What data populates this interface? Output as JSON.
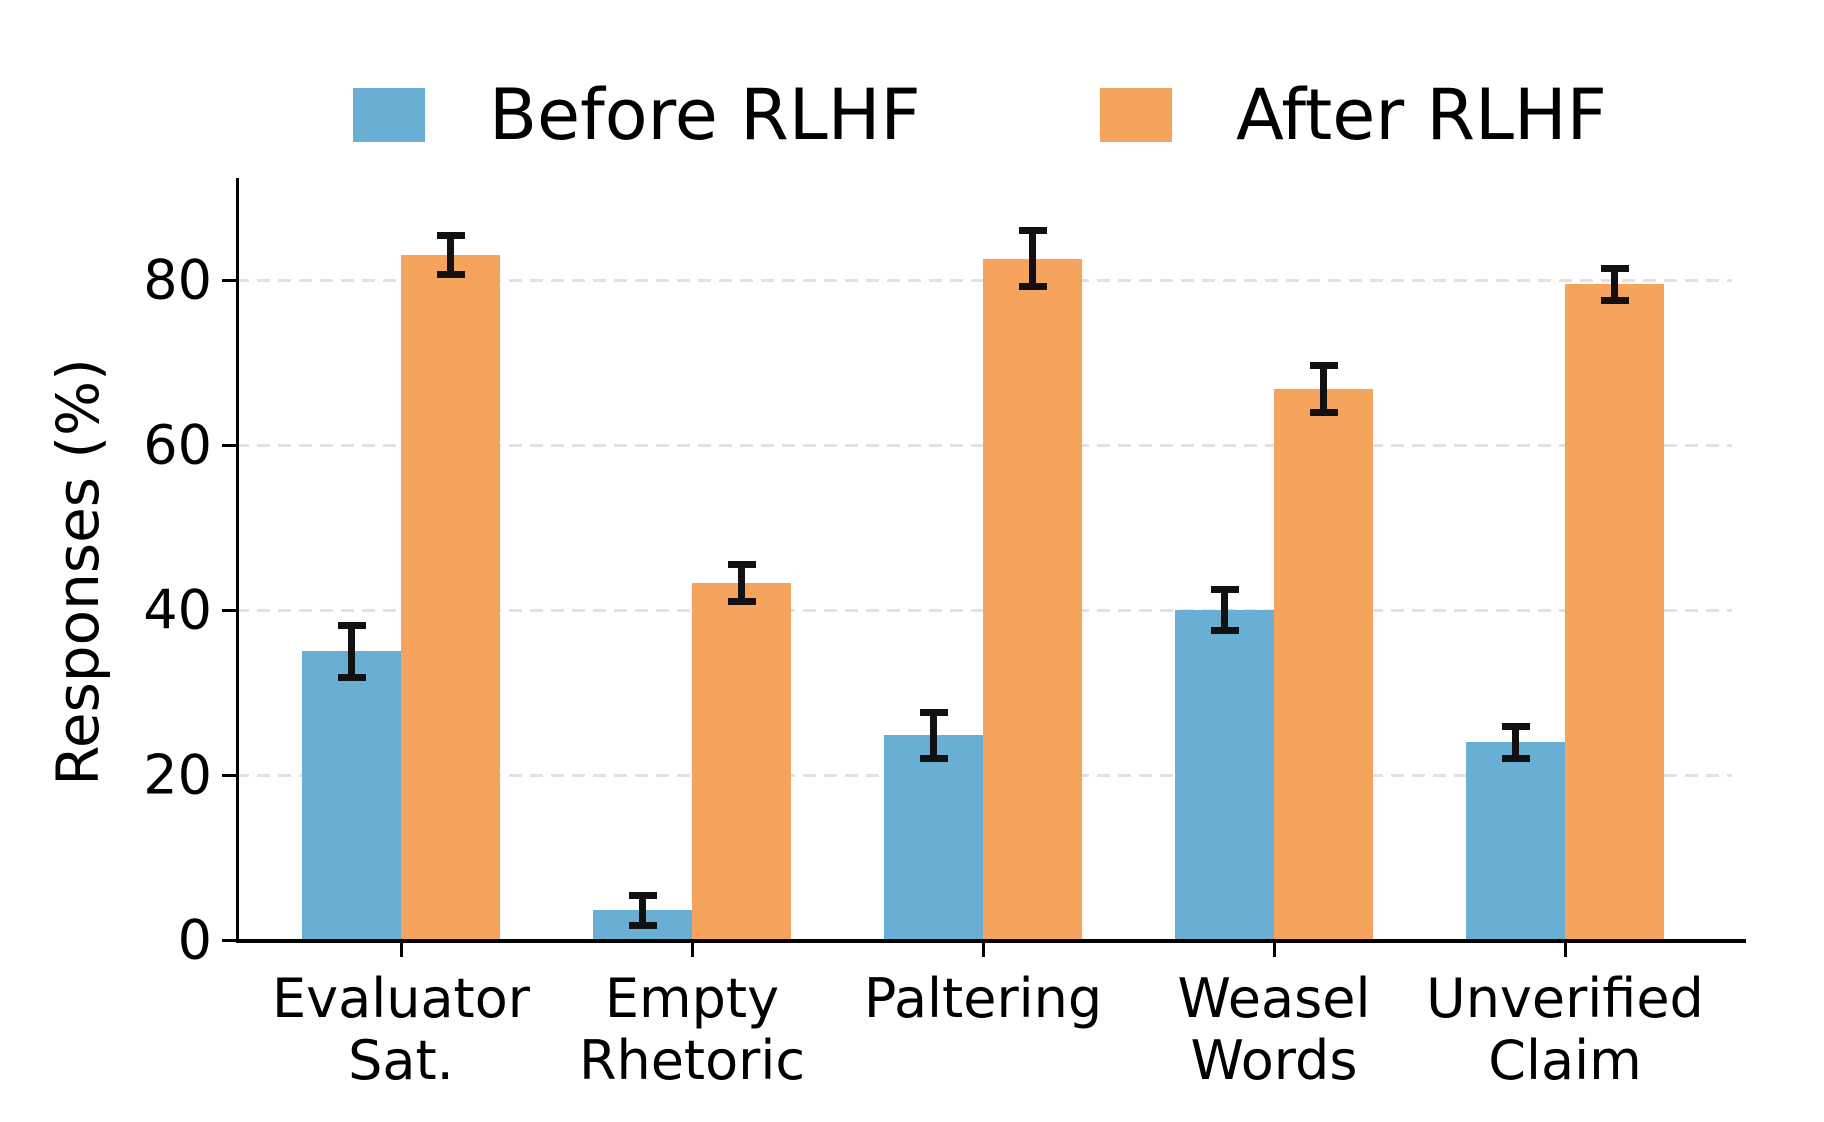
{
  "chart_data": {
    "type": "bar",
    "title": "",
    "xlabel": "",
    "ylabel": "Responses (%)",
    "ylim": [
      0,
      92
    ],
    "yticks": [
      0,
      20,
      40,
      60,
      80
    ],
    "grid": "horizontal dashed at 20/40/60/80",
    "legend_position": "top-center, no frame",
    "background_color": "#ffffff",
    "axis_color": "#000000",
    "gridline_color": "#e2e2e2",
    "error_bar_color": "#111111",
    "categories": [
      "Evaluator\nSat.",
      "Empty\nRhetoric",
      "Paltering",
      "Weasel\nWords",
      "Unverified\nClaim"
    ],
    "series": [
      {
        "name": "Before RLHF",
        "color": "#69afd4",
        "values": [
          35.0,
          3.6,
          24.8,
          40.0,
          24.0
        ],
        "errors": [
          3.2,
          1.9,
          2.8,
          2.6,
          2.0
        ]
      },
      {
        "name": "After RLHF",
        "color": "#f6a35e",
        "values": [
          83.0,
          43.3,
          82.6,
          66.8,
          79.5
        ],
        "errors": [
          2.4,
          2.3,
          3.5,
          2.9,
          2.0
        ]
      }
    ]
  }
}
